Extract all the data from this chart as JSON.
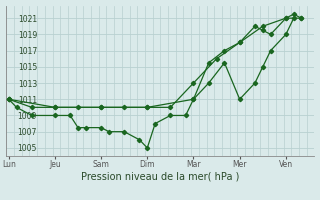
{
  "background_color": "#daeaea",
  "grid_color": "#b8d0d0",
  "line_color": "#1a6620",
  "marker_color": "#1a6620",
  "xlabel": "Pression niveau de la mer( hPa )",
  "ylim": [
    1004.0,
    1022.5
  ],
  "yticks": [
    1005,
    1007,
    1009,
    1011,
    1013,
    1015,
    1017,
    1019,
    1021
  ],
  "x_labels": [
    "Lun",
    "Jeu",
    "Sam",
    "Dim",
    "Mar",
    "Mer",
    "Ven"
  ],
  "x_positions": [
    0,
    1,
    2,
    3,
    4,
    5,
    6
  ],
  "xlim": [
    -0.05,
    6.6
  ],
  "series1": {
    "x": [
      0.0,
      0.17,
      0.5,
      1.0,
      1.33,
      1.5,
      1.67,
      2.0,
      2.17,
      2.5,
      2.83,
      3.0,
      3.17,
      3.5,
      3.83,
      4.0,
      4.33,
      4.67,
      5.0,
      5.33,
      5.5,
      5.67,
      6.0,
      6.17
    ],
    "y": [
      1011,
      1010,
      1009,
      1009,
      1009,
      1007.5,
      1007.5,
      1007.5,
      1007,
      1007,
      1006,
      1005,
      1008,
      1009,
      1009,
      1011,
      1013,
      1015.5,
      1011,
      1013,
      1015,
      1017,
      1019,
      1021
    ]
  },
  "series2": {
    "x": [
      0.0,
      0.5,
      1.0,
      1.5,
      2.0,
      2.5,
      3.0,
      3.5,
      4.0,
      4.5,
      5.0,
      5.5,
      6.0,
      6.33
    ],
    "y": [
      1011,
      1010,
      1010,
      1010,
      1010,
      1010,
      1010,
      1010,
      1013,
      1016,
      1018,
      1020,
      1021,
      1021
    ]
  },
  "series3": {
    "x": [
      0.0,
      1.0,
      2.0,
      3.0,
      4.0,
      4.33,
      4.67,
      5.0,
      5.33,
      5.5,
      5.67,
      6.0,
      6.17,
      6.33
    ],
    "y": [
      1011,
      1010,
      1010,
      1010,
      1011,
      1015.5,
      1017,
      1018,
      1020,
      1019.5,
      1019,
      1021,
      1021.5,
      1021
    ]
  }
}
